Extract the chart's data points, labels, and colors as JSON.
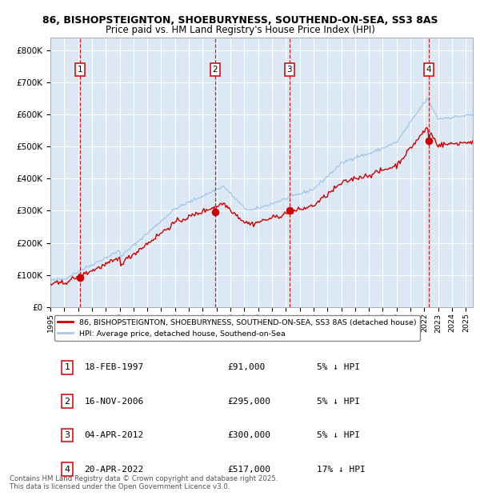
{
  "title1": "86, BISHOPSTEIGNTON, SHOEBURYNESS, SOUTHEND-ON-SEA, SS3 8AS",
  "title2": "Price paid vs. HM Land Registry's House Price Index (HPI)",
  "bg_color": "#dce9f5",
  "grid_color": "#ffffff",
  "hpi_color": "#a8c8e8",
  "price_color": "#cc0000",
  "dashed_color": "#cc0000",
  "transactions": [
    {
      "num": 1,
      "date_label": "18-FEB-1997",
      "price": 91000,
      "pct": "5%",
      "date_x": 1997.13
    },
    {
      "num": 2,
      "date_label": "16-NOV-2006",
      "price": 295000,
      "pct": "5%",
      "date_x": 2006.88
    },
    {
      "num": 3,
      "date_label": "04-APR-2012",
      "price": 300000,
      "pct": "5%",
      "date_x": 2012.26
    },
    {
      "num": 4,
      "date_label": "20-APR-2022",
      "price": 517000,
      "pct": "17%",
      "date_x": 2022.3
    }
  ],
  "ylim": [
    0,
    840000
  ],
  "yticks": [
    0,
    100000,
    200000,
    300000,
    400000,
    500000,
    600000,
    700000,
    800000
  ],
  "ytick_labels": [
    "£0",
    "£100K",
    "£200K",
    "£300K",
    "£400K",
    "£500K",
    "£600K",
    "£700K",
    "£800K"
  ],
  "xlim": [
    1995.0,
    2025.5
  ],
  "legend_line1": "86, BISHOPSTEIGNTON, SHOEBURYNESS, SOUTHEND-ON-SEA, SS3 8AS (detached house)",
  "legend_line2": "HPI: Average price, detached house, Southend-on-Sea",
  "footer1": "Contains HM Land Registry data © Crown copyright and database right 2025.",
  "footer2": "This data is licensed under the Open Government Licence v3.0.",
  "table_rows": [
    {
      "num": "1",
      "date": "18-FEB-1997",
      "price": "£91,000",
      "pct": "5% ↓ HPI"
    },
    {
      "num": "2",
      "date": "16-NOV-2006",
      "price": "£295,000",
      "pct": "5% ↓ HPI"
    },
    {
      "num": "3",
      "date": "04-APR-2012",
      "price": "£300,000",
      "pct": "5% ↓ HPI"
    },
    {
      "num": "4",
      "date": "20-APR-2022",
      "price": "£517,000",
      "pct": "17% ↓ HPI"
    }
  ]
}
